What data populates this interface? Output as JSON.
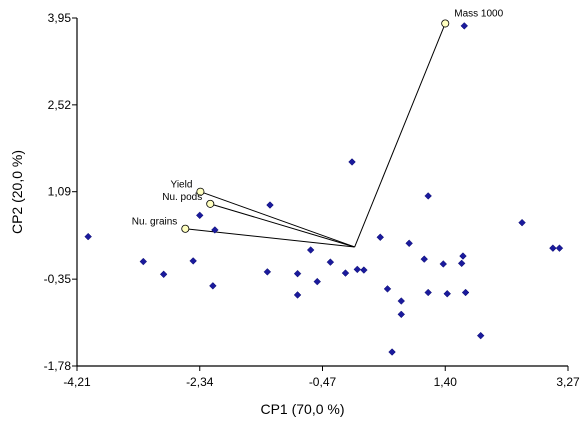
{
  "chart_data": {
    "type": "scatter",
    "subtype": "pca-biplot",
    "title": "",
    "xlabel": "CP1 (70,0 %)",
    "ylabel": "CP2 (20,0 %)",
    "xlim": [
      -4.21,
      3.27
    ],
    "ylim": [
      -1.78,
      3.95
    ],
    "x_ticks": [
      {
        "value": -4.21,
        "label": "-4,21"
      },
      {
        "value": -2.34,
        "label": "-2,34"
      },
      {
        "value": -0.47,
        "label": "-0,47"
      },
      {
        "value": 1.4,
        "label": "1,40"
      },
      {
        "value": 3.27,
        "label": "3,27"
      }
    ],
    "y_ticks": [
      {
        "value": 3.95,
        "label": "3,95"
      },
      {
        "value": 2.52,
        "label": "2,52"
      },
      {
        "value": 1.09,
        "label": "1,09"
      },
      {
        "value": -0.35,
        "label": "-0,35"
      },
      {
        "value": -1.78,
        "label": "-1,78"
      }
    ],
    "grid": false,
    "origin": {
      "x": 0.02,
      "y": 0.18
    },
    "points_color": "#1a1a9c",
    "vector_color": "#000000",
    "vector_end_fill": "#ffffc0",
    "points": [
      {
        "x": -4.04,
        "y": 0.35
      },
      {
        "x": -3.2,
        "y": -0.06
      },
      {
        "x": -2.89,
        "y": -0.27
      },
      {
        "x": -2.44,
        "y": -0.05
      },
      {
        "x": -2.34,
        "y": 0.7
      },
      {
        "x": -2.11,
        "y": 0.46
      },
      {
        "x": -2.14,
        "y": -0.46
      },
      {
        "x": -1.27,
        "y": 0.87
      },
      {
        "x": -1.31,
        "y": -0.23
      },
      {
        "x": -0.85,
        "y": -0.26
      },
      {
        "x": -0.85,
        "y": -0.61
      },
      {
        "x": -0.65,
        "y": 0.13
      },
      {
        "x": -0.55,
        "y": -0.39
      },
      {
        "x": -0.35,
        "y": -0.07
      },
      {
        "x": -0.12,
        "y": -0.25
      },
      {
        "x": -0.02,
        "y": 1.58
      },
      {
        "x": 0.06,
        "y": -0.19
      },
      {
        "x": 0.16,
        "y": -0.2
      },
      {
        "x": 0.41,
        "y": 0.34
      },
      {
        "x": 0.52,
        "y": -0.51
      },
      {
        "x": 0.59,
        "y": -1.55
      },
      {
        "x": 0.73,
        "y": -0.71
      },
      {
        "x": 0.73,
        "y": -0.93
      },
      {
        "x": 0.85,
        "y": 0.24
      },
      {
        "x": 1.08,
        "y": -0.02
      },
      {
        "x": 1.14,
        "y": 1.02
      },
      {
        "x": 1.14,
        "y": -0.57
      },
      {
        "x": 1.37,
        "y": -0.1
      },
      {
        "x": 1.43,
        "y": -0.59
      },
      {
        "x": 1.65,
        "y": -0.09
      },
      {
        "x": 1.67,
        "y": 0.03
      },
      {
        "x": 1.71,
        "y": -0.57
      },
      {
        "x": 1.69,
        "y": 3.82
      },
      {
        "x": 1.94,
        "y": -1.28
      },
      {
        "x": 2.57,
        "y": 0.58
      },
      {
        "x": 3.04,
        "y": 0.16
      },
      {
        "x": 3.14,
        "y": 0.16
      }
    ],
    "variables": [
      {
        "name": "Mass 1000",
        "x": 1.4,
        "y": 3.86
      },
      {
        "name": "Yield",
        "x": -2.33,
        "y": 1.09
      },
      {
        "name": "Nu. pods",
        "x": -2.18,
        "y": 0.89
      },
      {
        "name": "Nu. grains",
        "x": -2.56,
        "y": 0.48
      }
    ]
  }
}
